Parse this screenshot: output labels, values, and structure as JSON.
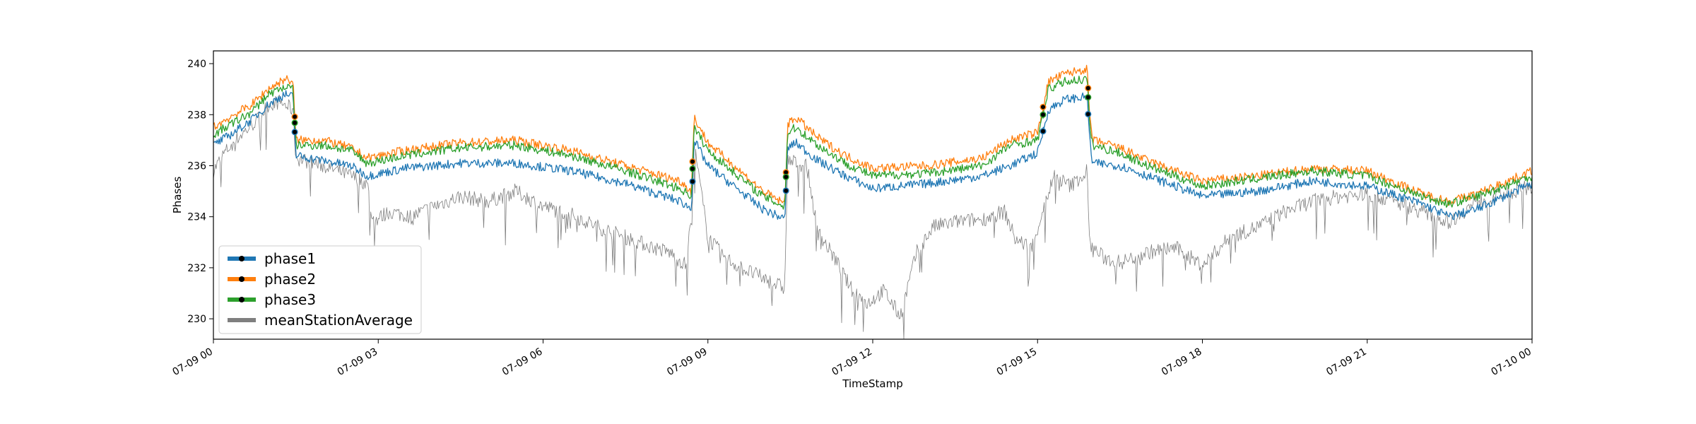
{
  "chart_data": {
    "type": "line",
    "title": "",
    "xlabel": "TimeStamp",
    "ylabel": "Phases",
    "ylim": [
      229.2,
      240.5
    ],
    "x_tick_labels": [
      "07-09 00",
      "07-09 03",
      "07-09 06",
      "07-09 09",
      "07-09 12",
      "07-09 15",
      "07-09 18",
      "07-09 21",
      "07-10 00"
    ],
    "y_ticks": [
      230,
      232,
      234,
      236,
      238,
      240
    ],
    "y_tick_labels": [
      "230",
      "232",
      "234",
      "236",
      "238",
      "240"
    ],
    "x_range_hours": [
      0,
      24
    ],
    "grid": false,
    "legend_position": "lower-left",
    "series": [
      {
        "name": "phase1",
        "color": "#1f77b4",
        "x_hours": [
          0,
          0.3,
          0.7,
          1.0,
          1.3,
          1.45,
          1.5,
          2.0,
          2.5,
          2.8,
          3.5,
          4.5,
          5.5,
          6.5,
          7.5,
          8.5,
          8.7,
          8.75,
          9.0,
          10.0,
          10.4,
          10.45,
          10.6,
          11.0,
          11.5,
          12.0,
          13.0,
          14.0,
          14.5,
          15.0,
          15.2,
          15.5,
          15.9,
          15.95,
          16.0,
          16.5,
          17.0,
          18.0,
          19.0,
          20.0,
          21.0,
          22.0,
          22.5,
          23.0,
          24.0
        ],
        "values": [
          236.8,
          237.2,
          237.8,
          238.4,
          238.8,
          238.7,
          236.4,
          236.2,
          236.0,
          235.6,
          235.9,
          236.1,
          236.1,
          235.8,
          235.3,
          234.6,
          234.3,
          237.0,
          236.0,
          234.3,
          233.9,
          236.7,
          236.9,
          236.2,
          235.6,
          235.1,
          235.3,
          235.6,
          236.0,
          236.5,
          238.2,
          238.6,
          238.7,
          237.0,
          236.1,
          236.0,
          235.6,
          234.8,
          235.0,
          235.4,
          235.2,
          234.5,
          234.0,
          234.3,
          235.3
        ]
      },
      {
        "name": "phase2",
        "color": "#ff7f0e",
        "x_hours": [
          0,
          0.3,
          0.7,
          1.0,
          1.3,
          1.45,
          1.5,
          2.0,
          2.5,
          2.8,
          3.5,
          4.5,
          5.5,
          6.5,
          7.5,
          8.5,
          8.7,
          8.75,
          9.0,
          10.0,
          10.4,
          10.45,
          10.6,
          11.0,
          11.5,
          12.0,
          13.0,
          14.0,
          14.5,
          15.0,
          15.2,
          15.5,
          15.9,
          15.95,
          16.0,
          16.5,
          17.0,
          18.0,
          19.0,
          20.0,
          21.0,
          22.0,
          22.5,
          23.0,
          24.0
        ],
        "values": [
          237.5,
          237.9,
          238.4,
          239.0,
          239.4,
          239.3,
          237.0,
          237.0,
          236.7,
          236.3,
          236.6,
          236.9,
          237.0,
          236.6,
          236.0,
          235.4,
          235.0,
          237.9,
          236.9,
          235.0,
          234.5,
          237.6,
          237.9,
          237.1,
          236.4,
          235.9,
          236.0,
          236.3,
          237.0,
          237.3,
          239.3,
          239.6,
          239.8,
          237.9,
          237.0,
          236.7,
          236.2,
          235.4,
          235.6,
          235.9,
          235.8,
          234.9,
          234.6,
          234.9,
          235.8
        ]
      },
      {
        "name": "phase3",
        "color": "#2ca02c",
        "x_hours": [
          0,
          0.3,
          0.7,
          1.0,
          1.3,
          1.45,
          1.5,
          2.0,
          2.5,
          2.8,
          3.5,
          4.5,
          5.5,
          6.5,
          7.5,
          8.5,
          8.7,
          8.75,
          9.0,
          10.0,
          10.4,
          10.45,
          10.6,
          11.0,
          11.5,
          12.0,
          13.0,
          14.0,
          14.5,
          15.0,
          15.2,
          15.5,
          15.9,
          15.95,
          16.0,
          16.5,
          17.0,
          18.0,
          19.0,
          20.0,
          21.0,
          22.0,
          22.5,
          23.0,
          24.0
        ],
        "values": [
          237.2,
          237.6,
          238.1,
          238.8,
          239.1,
          239.0,
          236.8,
          236.8,
          236.6,
          236.1,
          236.4,
          236.7,
          236.8,
          236.4,
          235.8,
          235.1,
          234.8,
          237.5,
          236.6,
          234.8,
          234.4,
          237.3,
          237.5,
          236.8,
          236.1,
          235.6,
          235.7,
          236.0,
          236.8,
          237.0,
          239.0,
          239.3,
          239.4,
          237.6,
          236.8,
          236.5,
          236.0,
          235.2,
          235.5,
          235.8,
          235.6,
          234.8,
          234.5,
          234.8,
          235.6
        ]
      },
      {
        "name": "meanStationAverage",
        "color": "#7f7f7f",
        "x_hours": [
          0,
          0.2,
          0.4,
          0.6,
          0.8,
          1.0,
          1.2,
          1.45,
          1.5,
          2.0,
          2.5,
          2.8,
          2.9,
          3.2,
          3.6,
          4.0,
          4.5,
          5.0,
          5.5,
          6.0,
          6.5,
          7.0,
          7.5,
          8.0,
          8.3,
          8.6,
          8.7,
          8.75,
          9.0,
          9.3,
          9.6,
          10.0,
          10.4,
          10.45,
          10.8,
          11.0,
          11.3,
          11.6,
          11.9,
          12.2,
          12.5,
          12.8,
          13.1,
          13.5,
          14.0,
          14.4,
          14.6,
          14.9,
          15.1,
          15.3,
          15.6,
          15.9,
          15.95,
          16.2,
          16.5,
          17.0,
          17.5,
          18.0,
          18.5,
          19.0,
          19.5,
          20.0,
          20.5,
          21.0,
          21.5,
          22.0,
          22.5,
          23.0,
          23.5,
          24.0
        ],
        "values": [
          235.8,
          236.5,
          237.0,
          237.4,
          237.8,
          238.4,
          238.5,
          238.2,
          236.3,
          236.0,
          235.6,
          235.3,
          233.8,
          234.2,
          234.0,
          234.4,
          234.8,
          234.6,
          235.0,
          234.4,
          234.1,
          233.6,
          233.2,
          232.8,
          232.6,
          232.1,
          234.0,
          236.8,
          233.2,
          232.4,
          232.0,
          231.6,
          231.2,
          236.2,
          236.0,
          233.4,
          232.4,
          231.2,
          230.6,
          231.1,
          230.1,
          232.6,
          233.6,
          233.8,
          233.9,
          234.2,
          233.1,
          232.8,
          234.3,
          235.6,
          235.2,
          235.8,
          232.9,
          232.4,
          232.2,
          232.6,
          232.8,
          232.1,
          233.2,
          233.6,
          234.2,
          234.6,
          234.8,
          234.9,
          234.6,
          234.2,
          233.8,
          234.6,
          234.9,
          235.2
        ]
      }
    ]
  }
}
